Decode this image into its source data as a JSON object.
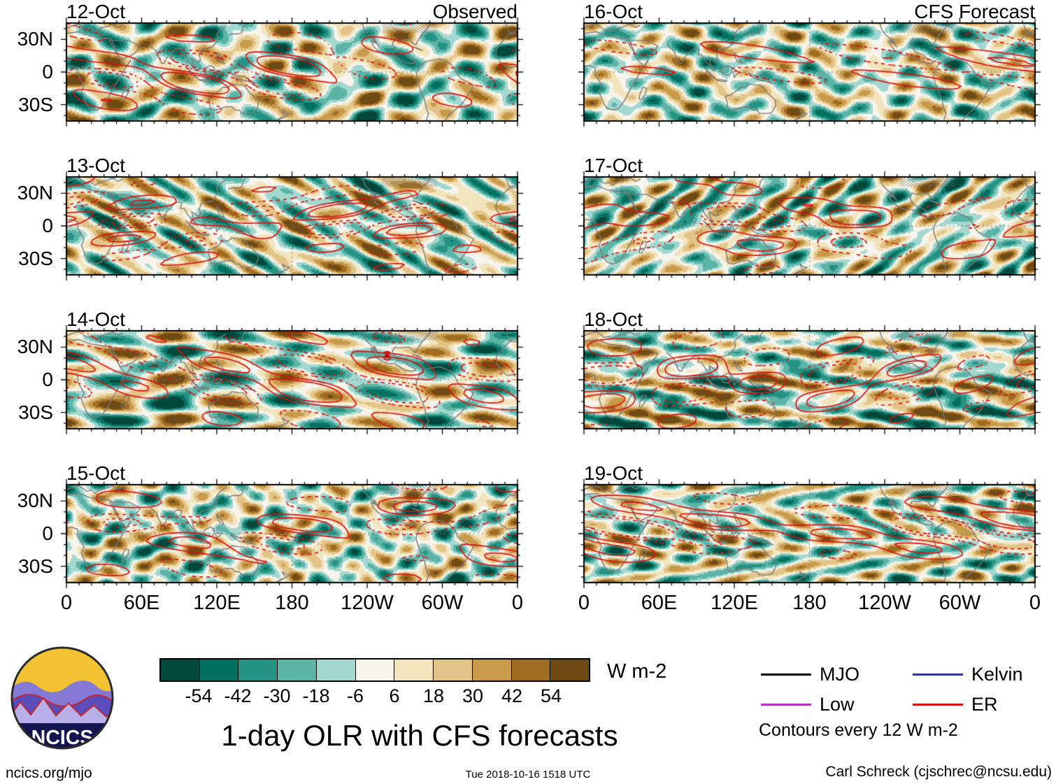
{
  "figure": {
    "title": "1-day OLR with CFS forecasts",
    "site": "ncics.org/mjo",
    "timestamp": "Tue 2018-10-16 1518 UTC",
    "credit": "Carl Schreck (cjschrec@ncsu.edu)",
    "logo_text": "NCICS"
  },
  "columns": [
    {
      "header": "Observed"
    },
    {
      "header": "CFS Forecast"
    }
  ],
  "chart_data": {
    "type": "heatmap",
    "description": "Eight global maps (0-360E, 45S-45N) of 1-day OLR anomalies (shaded, W m-2) with red wave-filtered contours. Left column: observed 12-15 Oct. Right column: CFS forecast 16-19 Oct.",
    "panels": [
      {
        "date": "12-Oct",
        "column": "Observed"
      },
      {
        "date": "13-Oct",
        "column": "Observed"
      },
      {
        "date": "14-Oct",
        "column": "Observed",
        "annotations": [
          {
            "type": "tropical-cyclone-symbol",
            "lon_deg": 256,
            "lat_deg": 22
          }
        ]
      },
      {
        "date": "15-Oct",
        "column": "Observed"
      },
      {
        "date": "16-Oct",
        "column": "CFS Forecast"
      },
      {
        "date": "17-Oct",
        "column": "CFS Forecast"
      },
      {
        "date": "18-Oct",
        "column": "CFS Forecast"
      },
      {
        "date": "19-Oct",
        "column": "CFS Forecast"
      }
    ],
    "x_ticks": [
      "0",
      "60E",
      "120E",
      "180",
      "120W",
      "60W",
      "0"
    ],
    "y_ticks": [
      "30N",
      "0",
      "30S"
    ],
    "lon_range_deg": [
      0,
      360
    ],
    "lat_range_deg": [
      -45,
      45
    ],
    "colorbar": {
      "values": [
        "-54",
        "-42",
        "-30",
        "-18",
        "-6",
        "6",
        "18",
        "30",
        "42",
        "54"
      ],
      "unit": "W m-2",
      "colors": [
        "#00473c",
        "#00705f",
        "#259384",
        "#5cb4a7",
        "#a2d8cf",
        "#f6f4ec",
        "#f2e4bc",
        "#e2c488",
        "#c89a4a",
        "#a06c22",
        "#6f4a14"
      ]
    },
    "legend": [
      {
        "label": "MJO",
        "color": "#000000"
      },
      {
        "label": "Kelvin",
        "color": "#2233cc"
      },
      {
        "label": "Low",
        "color": "#bb33cc"
      },
      {
        "label": "ER",
        "color": "#dd1111"
      }
    ],
    "contour_note": "Contours every 12 W m-2"
  }
}
